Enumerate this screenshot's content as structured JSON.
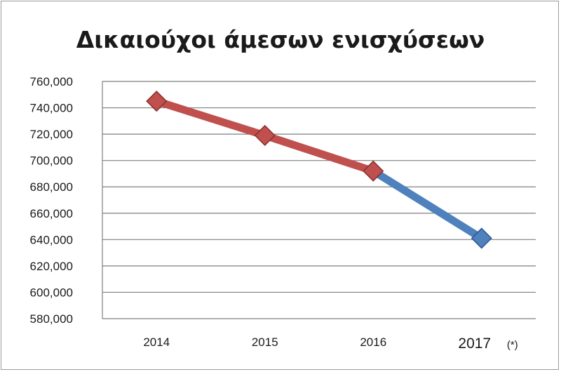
{
  "chart_data": {
    "type": "line",
    "title": "Δικαιούχοι άμεσων ενισχύσεων",
    "categories": [
      "2014",
      "2015",
      "2016",
      "2017"
    ],
    "category_note": "(*)",
    "series": [
      {
        "values": [
          745000,
          719000,
          692000,
          null
        ],
        "color": "#c0504d",
        "marker": "diamond"
      },
      {
        "values": [
          null,
          null,
          692000,
          641000
        ],
        "color": "#4f81bd",
        "marker": "diamond"
      }
    ],
    "ylim": [
      580000,
      760000
    ],
    "yticks": [
      "760,000",
      "740,000",
      "720,000",
      "700,000",
      "680,000",
      "660,000",
      "640,000",
      "620,000",
      "600,000",
      "580,000"
    ],
    "ytick_values": [
      760000,
      740000,
      720000,
      700000,
      680000,
      660000,
      640000,
      620000,
      600000,
      580000
    ],
    "grid": true,
    "legend": "none"
  }
}
